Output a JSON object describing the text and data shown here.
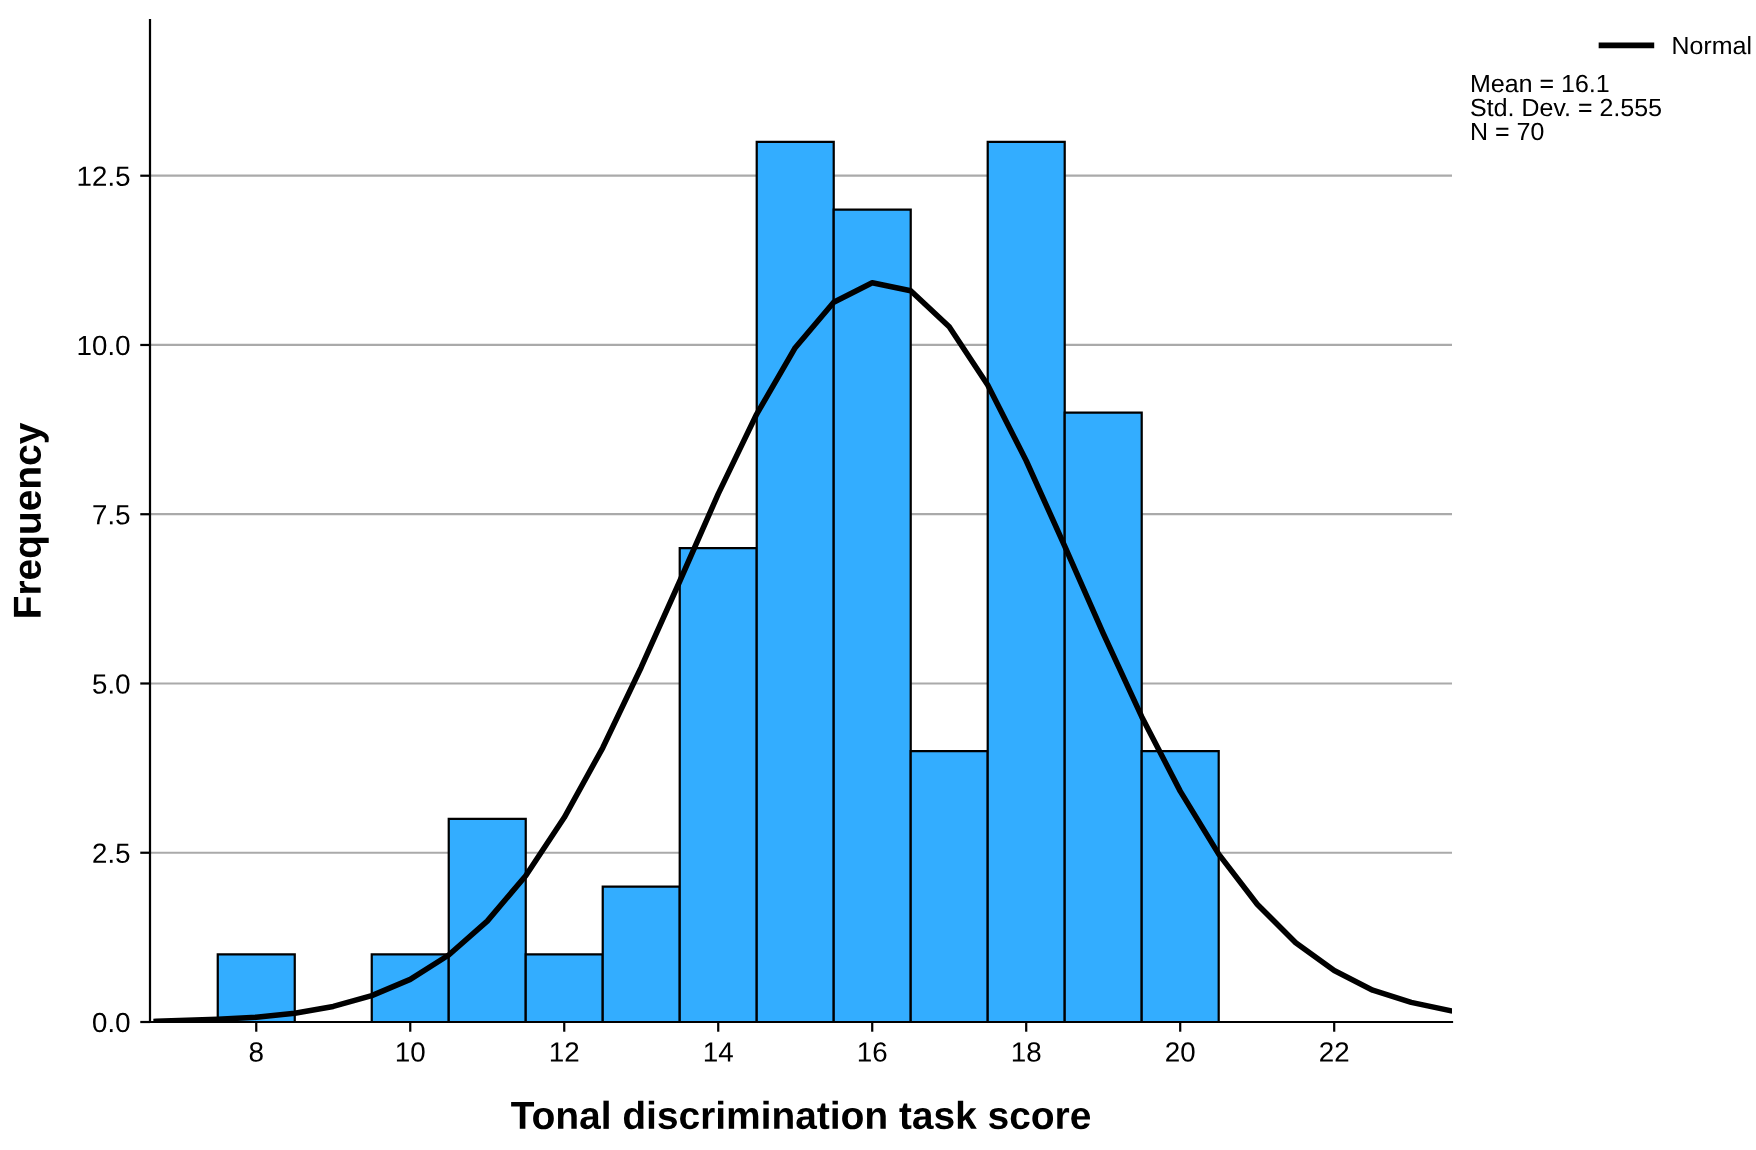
{
  "chart_data": {
    "type": "histogram",
    "xlabel": "Tonal discrimination task score",
    "ylabel": "Frequency",
    "bins": [
      7.5,
      8.5,
      9.5,
      10.5,
      11.5,
      12.5,
      13.5,
      14.5,
      15.5,
      16.5,
      17.5,
      18.5,
      19.5,
      20.5
    ],
    "values": [
      1,
      0,
      1,
      3,
      1,
      2,
      7,
      13,
      12,
      4,
      13,
      9,
      4
    ],
    "color": "#33adff",
    "series": [
      {
        "type": "line",
        "name": "Normal",
        "color": "#000000",
        "x": [
          6.7,
          7,
          7.5,
          8,
          8.5,
          9,
          9.5,
          10,
          10.5,
          11,
          11.5,
          12,
          12.5,
          13,
          13.5,
          14,
          14.5,
          15,
          15.5,
          16,
          16.5,
          17,
          17.5,
          18,
          18.5,
          19,
          19.5,
          20,
          20.5,
          21,
          21.5,
          22,
          22.5,
          23,
          23.5
        ],
        "values": [
          0.01,
          0.02,
          0.04,
          0.07,
          0.13,
          0.23,
          0.39,
          0.63,
          0.99,
          1.49,
          2.16,
          3.02,
          4.05,
          5.24,
          6.51,
          7.8,
          8.98,
          9.96,
          10.63,
          10.92,
          10.8,
          10.27,
          9.41,
          8.29,
          7.03,
          5.74,
          4.51,
          3.41,
          2.48,
          1.74,
          1.17,
          0.76,
          0.47,
          0.29,
          0.17
        ]
      }
    ],
    "xlim": [
      6.62,
      23.53
    ],
    "ylim": [
      0,
      14.8
    ],
    "xticks": [
      8,
      10,
      12,
      14,
      16,
      18,
      20,
      22
    ],
    "yticks": [
      {
        "value": 0,
        "label": "0.0"
      },
      {
        "value": 2.5,
        "label": "2.5"
      },
      {
        "value": 5,
        "label": "5.0"
      },
      {
        "value": 7.5,
        "label": "7.5"
      },
      {
        "value": 10,
        "label": "10.0"
      },
      {
        "value": 12.5,
        "label": "12.5"
      }
    ],
    "grid": "y",
    "legend": "top right",
    "annotations": [
      "Mean = 16.1",
      "Std. Dev. = 2.555",
      "N = 70"
    ]
  }
}
